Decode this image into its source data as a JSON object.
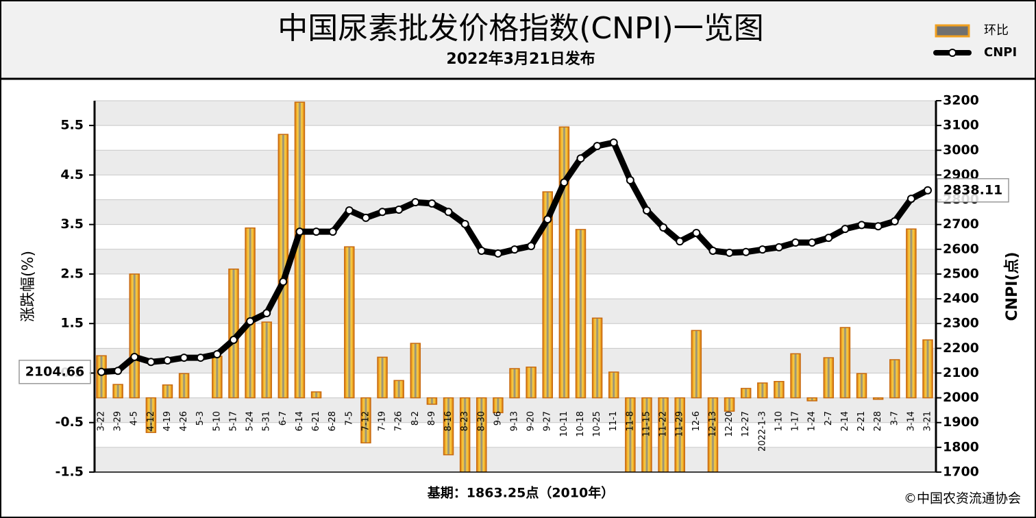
{
  "chart_data": {
    "type": "combo",
    "title": "中国尿素批发价格指数(CNPI)一览图",
    "subtitle": "2022年3月21日发布",
    "y_label": "涨跌幅(%)",
    "y2_label": "CNPI(点)",
    "footer": "基期：1863.25点（2010年）",
    "source": "©中国农资流通协会",
    "legend": "top-right",
    "grid": true,
    "categories": [
      "3-22",
      "3-29",
      "4-5",
      "4-12",
      "4-19",
      "4-26",
      "5-3",
      "5-10",
      "5-17",
      "5-24",
      "5-31",
      "6-7",
      "6-14",
      "6-21",
      "6-28",
      "7-5",
      "7-12",
      "7-19",
      "7-26",
      "8-2",
      "8-9",
      "8-16",
      "8-23",
      "8-30",
      "9-6",
      "9-13",
      "9-20",
      "9-27",
      "10-11",
      "10-18",
      "10-25",
      "11-1",
      "11-8",
      "11-15",
      "11-22",
      "11-29",
      "12-6",
      "12-13",
      "12-20",
      "12-27",
      "2022-1-3",
      "1-10",
      "1-17",
      "1-24",
      "2-7",
      "2-14",
      "2-21",
      "2-28",
      "3-7",
      "3-14",
      "3-21"
    ],
    "series": [
      {
        "name": "环比",
        "type": "bar",
        "color": "#f0a020",
        "values": [
          0.85,
          0.27,
          2.5,
          -0.7,
          0.26,
          0.49,
          0,
          0.84,
          2.6,
          3.43,
          1.53,
          5.32,
          5.97,
          0.12,
          0,
          3.05,
          -0.91,
          0.82,
          0.35,
          1.1,
          -0.13,
          -1.15,
          -1.5,
          -1.5,
          -0.3,
          0.59,
          0.62,
          4.16,
          5.47,
          3.4,
          1.61,
          0.52,
          -1.5,
          -1.5,
          -1.5,
          -1.5,
          1.36,
          -1.5,
          -0.27,
          0.19,
          0.3,
          0.33,
          0.89,
          -0.06,
          0.81,
          1.42,
          0.49,
          -0.03,
          0.77,
          3.41,
          1.17
        ]
      },
      {
        "name": "CNPI",
        "type": "line",
        "axis": "y2",
        "color": "#000000",
        "values": [
          2104.66,
          2109,
          2165,
          2145,
          2151,
          2162,
          2162,
          2176,
          2234,
          2309,
          2342,
          2469,
          2671,
          2671,
          2671,
          2757,
          2727,
          2751,
          2760,
          2790,
          2785,
          2751,
          2702,
          2594,
          2583,
          2599,
          2613,
          2721,
          2870,
          2967,
          3017,
          3031,
          2879,
          2757,
          2688,
          2632,
          2666,
          2594,
          2586,
          2589,
          2599,
          2608,
          2627,
          2627,
          2646,
          2682,
          2698,
          2693,
          2713,
          2804,
          2838.11
        ]
      }
    ],
    "ylim": [
      -1.5,
      6
    ],
    "yticks": [
      -1.5,
      -0.5,
      0.5,
      1.5,
      2.5,
      3.5,
      4.5,
      5.5
    ],
    "y2lim": [
      1700,
      3200
    ],
    "y2ticks": [
      1700,
      1800,
      1900,
      2000,
      2100,
      2200,
      2300,
      2400,
      2500,
      2600,
      2700,
      2800,
      2900,
      3000,
      3100,
      3200
    ]
  }
}
